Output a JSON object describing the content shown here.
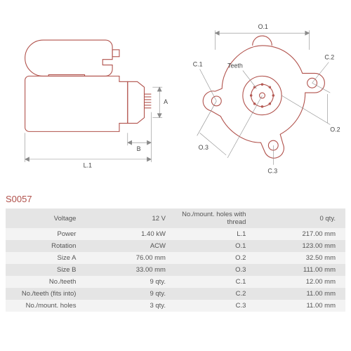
{
  "part_id": "S0057",
  "diagram_left": {
    "labels": {
      "L1": "L.1",
      "A": "A",
      "B": "B"
    },
    "outline_color": "#b0504a",
    "dim_color": "#8a8a8a"
  },
  "diagram_right": {
    "labels": {
      "O1": "O.1",
      "O2": "O.2",
      "O3": "O.3",
      "C1": "C.1",
      "C2": "C.2",
      "C3": "C.3",
      "Teeth": "Teeth"
    },
    "outline_color": "#b0504a",
    "dim_color": "#8a8a8a"
  },
  "specs_left": [
    {
      "label": "Voltage",
      "value": "12 V"
    },
    {
      "label": "Power",
      "value": "1.40 kW"
    },
    {
      "label": "Rotation",
      "value": "ACW"
    },
    {
      "label": "Size A",
      "value": "76.00 mm"
    },
    {
      "label": "Size B",
      "value": "33.00 mm"
    },
    {
      "label": "No./teeth",
      "value": "9 qty."
    },
    {
      "label": "No./teeth (fits into)",
      "value": "9 qty."
    },
    {
      "label": "No./mount. holes",
      "value": "3 qty."
    }
  ],
  "specs_right": [
    {
      "label": "No./mount. holes with thread",
      "value": "0 qty."
    },
    {
      "label": "L.1",
      "value": "217.00 mm"
    },
    {
      "label": "O.1",
      "value": "123.00 mm"
    },
    {
      "label": "O.2",
      "value": "32.50 mm"
    },
    {
      "label": "O.3",
      "value": "111.00 mm"
    },
    {
      "label": "C.1",
      "value": "12.00 mm"
    },
    {
      "label": "C.2",
      "value": "11.00 mm"
    },
    {
      "label": "C.3",
      "value": "11.00 mm"
    }
  ]
}
